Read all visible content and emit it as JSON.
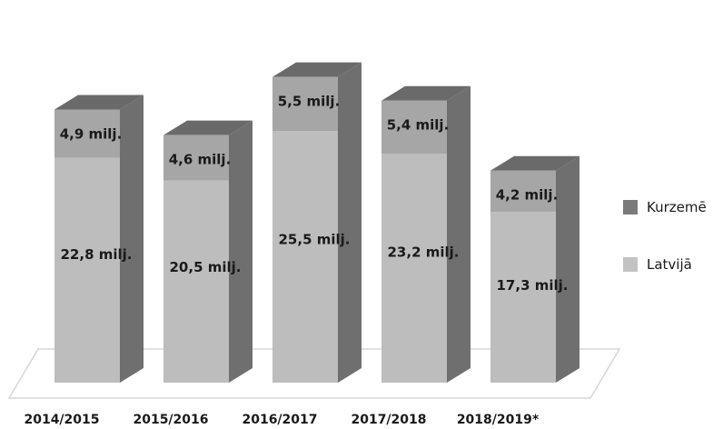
{
  "chart_data": {
    "type": "bar",
    "stacked": true,
    "style": "3d",
    "categories": [
      "2014/2015",
      "2015/2016",
      "2016/2017",
      "2017/2018",
      "2018/2019*"
    ],
    "series": [
      {
        "name": "Latvijā",
        "values": [
          22.8,
          20.5,
          25.5,
          23.2,
          17.3
        ],
        "labels": [
          "22,8 milj.",
          "20,5 milj.",
          "25,5 milj.",
          "23,2 milj.",
          "17,3 milj."
        ],
        "color": "#bdbdbd"
      },
      {
        "name": "Kurzemē",
        "values": [
          4.9,
          4.6,
          5.5,
          5.4,
          4.2
        ],
        "labels": [
          "4,9 milj.",
          "4,6  milj.",
          "5,5 milj.",
          "5,4 milj.",
          "4,2  milj."
        ],
        "color": "#a6a6a6"
      }
    ],
    "title": "",
    "xlabel": "",
    "ylabel": "",
    "legend_position": "right",
    "grid": false
  },
  "legend": [
    {
      "name": "Kurzemē",
      "color": "#7a7a7a"
    },
    {
      "name": "Latvijā",
      "color": "#c2c2c2"
    }
  ]
}
